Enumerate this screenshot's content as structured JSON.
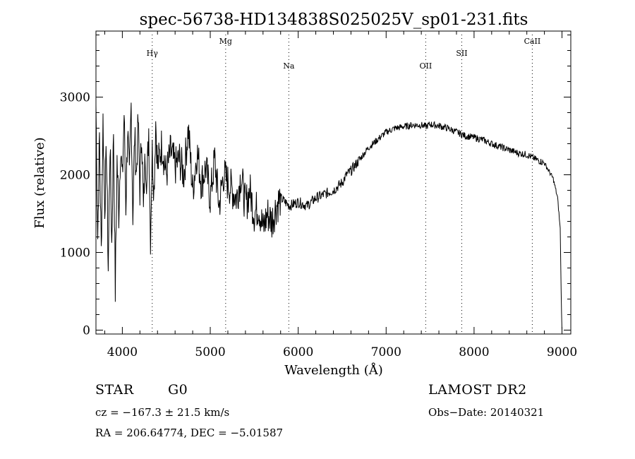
{
  "chart_data": {
    "type": "line",
    "title": "spec-56738-HD134838S025025V_sp01-231.fits",
    "xlabel": "Wavelength (Å)",
    "ylabel": "Flux (relative)",
    "xlim": [
      3700,
      9100
    ],
    "ylim": [
      -50,
      3850
    ],
    "xticks": [
      4000,
      5000,
      6000,
      7000,
      8000,
      9000
    ],
    "yticks": [
      0,
      1000,
      2000,
      3000
    ],
    "x_minor_step": 200,
    "y_minor_step": 200,
    "grid": false,
    "lines": [
      {
        "name": "Hγ",
        "x": 4340,
        "label_level": "high"
      },
      {
        "name": "Mg",
        "x": 5175,
        "label_level": "top"
      },
      {
        "name": "Na",
        "x": 5893,
        "label_level": "low"
      },
      {
        "name": "OII",
        "x": 7450,
        "label_level": "low"
      },
      {
        "name": "SII",
        "x": 7860,
        "label_level": "high"
      },
      {
        "name": "CaII",
        "x": 8662,
        "label_level": "top"
      }
    ],
    "series": [
      {
        "x": [
          3700,
          3720,
          3740,
          3760,
          3780,
          3800,
          3820,
          3840,
          3860,
          3880,
          3900,
          3920,
          3940,
          3960,
          3980,
          4000,
          4020,
          4040,
          4060,
          4080,
          4100,
          4120,
          4140,
          4160,
          4180,
          4200,
          4220,
          4240,
          4260,
          4280,
          4300,
          4320,
          4340,
          4360,
          4380,
          4400,
          4450,
          4500,
          4550,
          4600,
          4650,
          4700,
          4750,
          4800,
          4850,
          4900,
          4950,
          5000,
          5050,
          5100,
          5150,
          5200,
          5250,
          5300,
          5350,
          5400,
          5450,
          5500,
          5550,
          5600,
          5650,
          5700,
          5750,
          5800,
          5900,
          6000,
          6100,
          6200,
          6300,
          6400,
          6500,
          6550,
          6600,
          6700,
          6800,
          6900,
          7000,
          7100,
          7200,
          7300,
          7400,
          7450,
          7500,
          7600,
          7700,
          7800,
          7900,
          8000,
          8100,
          8200,
          8300,
          8400,
          8500,
          8600,
          8700,
          8800,
          8900,
          8950,
          8980,
          8990,
          9000
        ],
        "y": [
          2900,
          1200,
          2500,
          1000,
          2700,
          1600,
          2300,
          800,
          2400,
          1100,
          2600,
          500,
          2200,
          1500,
          2400,
          1900,
          2800,
          1600,
          2600,
          1900,
          2900,
          1500,
          2500,
          2000,
          2700,
          1800,
          2600,
          1500,
          2300,
          1900,
          2600,
          1200,
          2300,
          1800,
          2700,
          2100,
          2400,
          2000,
          2300,
          2100,
          2200,
          2000,
          2600,
          1800,
          2300,
          1900,
          2100,
          1700,
          2200,
          1600,
          2000,
          1900,
          1800,
          1700,
          2000,
          1600,
          1800,
          1500,
          1600,
          1300,
          1500,
          1400,
          1600,
          1700,
          1600,
          1650,
          1600,
          1700,
          1750,
          1800,
          1900,
          2000,
          2050,
          2200,
          2350,
          2450,
          2550,
          2600,
          2620,
          2640,
          2640,
          2620,
          2650,
          2630,
          2600,
          2550,
          2500,
          2480,
          2450,
          2400,
          2360,
          2320,
          2280,
          2260,
          2200,
          2150,
          1950,
          1700,
          1300,
          500,
          0
        ]
      }
    ]
  },
  "info": {
    "object_type": "STAR",
    "subclass": "G0",
    "survey": "LAMOST DR2",
    "redshift": "cz = −167.3 ± 21.5 km/s",
    "obs_date": "Obs−Date: 20140321",
    "coords": "RA = 206.64774, DEC =  −5.01587"
  }
}
